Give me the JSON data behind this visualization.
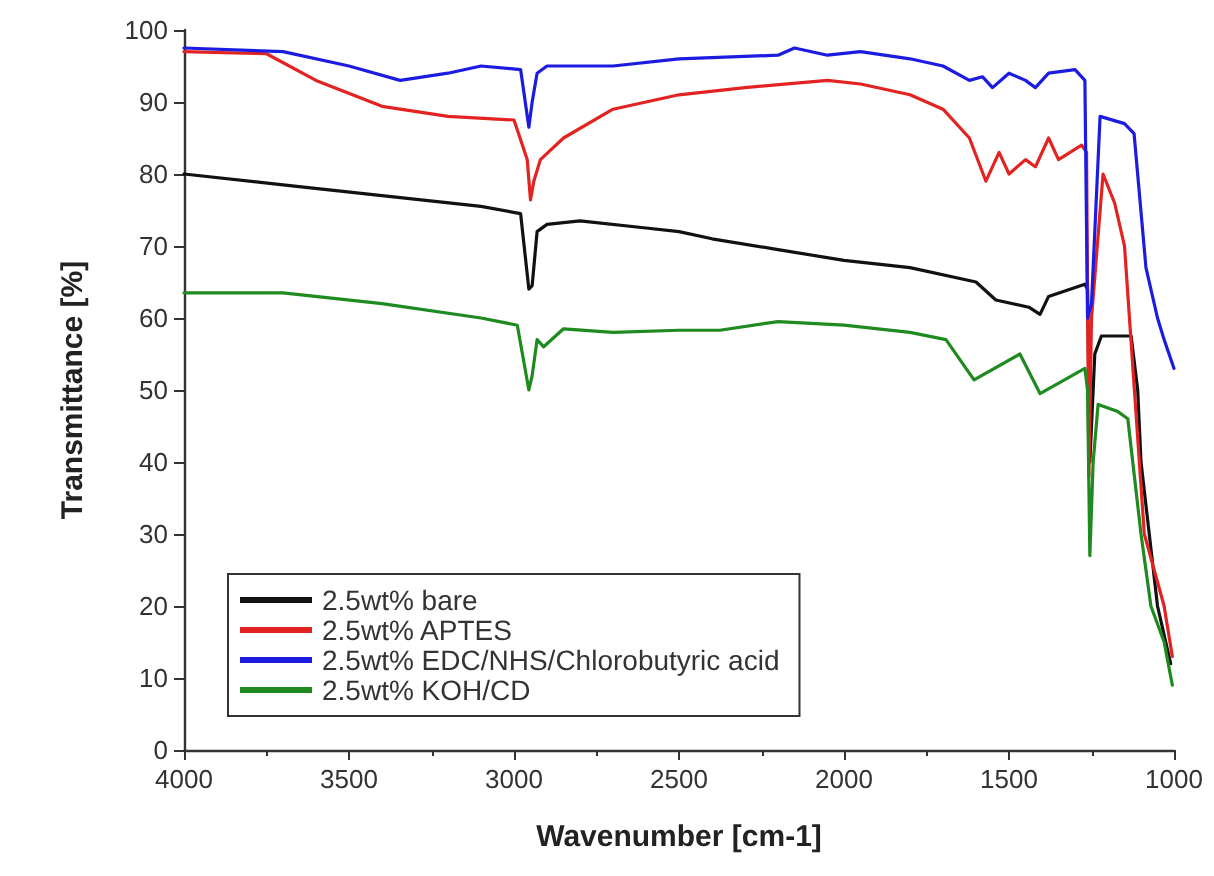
{
  "chart_data": {
    "type": "line",
    "xlabel": "Wavenumber [cm-1]",
    "ylabel": "Transmittance [%]",
    "xlim": [
      4000,
      1000
    ],
    "ylim": [
      0,
      100
    ],
    "xticks": [
      4000,
      3500,
      3000,
      2500,
      2000,
      1500,
      1000
    ],
    "yticks": [
      0,
      10,
      20,
      30,
      40,
      50,
      60,
      70,
      80,
      90,
      100
    ],
    "legend": "bottom left",
    "grid": false,
    "marker": "none",
    "line_style": "solid",
    "series": [
      {
        "name": "2.5wt% bare",
        "color": "#111111",
        "x": [
          4000,
          3700,
          3400,
          3100,
          2980,
          2955,
          2945,
          2930,
          2900,
          2800,
          2600,
          2500,
          2400,
          2200,
          2000,
          1800,
          1600,
          1540,
          1440,
          1406,
          1380,
          1270,
          1262,
          1255,
          1240,
          1220,
          1130,
          1110,
          1100,
          1050,
          1010
        ],
        "values": [
          80,
          78.5,
          77,
          75.5,
          74.5,
          64,
          64.5,
          72,
          73,
          73.5,
          72.5,
          72,
          71,
          69.5,
          68,
          67,
          65,
          62.5,
          61.5,
          60.5,
          63,
          64.7,
          64,
          40,
          55,
          57.5,
          57.5,
          50,
          40,
          20,
          12
        ]
      },
      {
        "name": "2.5wt% APTES",
        "color": "#e32222",
        "x": [
          4000,
          3750,
          3600,
          3400,
          3200,
          3000,
          2960,
          2950,
          2940,
          2920,
          2850,
          2700,
          2500,
          2300,
          2050,
          1950,
          1800,
          1700,
          1620,
          1570,
          1530,
          1500,
          1450,
          1420,
          1380,
          1350,
          1280,
          1265,
          1258,
          1250,
          1215,
          1180,
          1150,
          1120,
          1090,
          1030,
          1005
        ],
        "values": [
          97,
          96.7,
          93,
          89.4,
          88,
          87.5,
          82,
          76.4,
          79,
          82,
          85,
          89,
          91,
          92,
          93,
          92.5,
          91,
          89,
          85,
          79,
          83,
          80,
          82,
          81,
          85,
          82,
          84,
          83,
          38,
          60,
          80,
          76,
          70,
          50,
          30,
          20,
          13
        ]
      },
      {
        "name": "2.5wt% EDC/NHS/Chlorobutyric acid",
        "color": "#1c1ce0",
        "x": [
          4000,
          3700,
          3500,
          3345,
          3200,
          3100,
          2980,
          2955,
          2945,
          2930,
          2900,
          2700,
          2500,
          2200,
          2150,
          2050,
          1950,
          1800,
          1700,
          1620,
          1580,
          1550,
          1500,
          1450,
          1420,
          1380,
          1300,
          1270,
          1262,
          1250,
          1224,
          1150,
          1121,
          1085,
          1050,
          1030,
          1000
        ],
        "values": [
          97.5,
          97,
          95,
          93,
          94,
          95,
          94.5,
          86.5,
          90,
          94,
          95,
          95,
          96,
          96.5,
          97.5,
          96.5,
          97,
          96,
          95,
          93,
          93.5,
          92,
          94,
          93,
          92,
          94,
          94.5,
          93,
          60,
          62,
          88,
          87,
          85.6,
          67,
          60,
          57,
          53
        ]
      },
      {
        "name": "2.5wt% KOH/CD",
        "color": "#1f8a1f",
        "x": [
          4000,
          3700,
          3400,
          3100,
          2990,
          2955,
          2945,
          2930,
          2910,
          2850,
          2700,
          2500,
          2376,
          2200,
          2000,
          1800,
          1691,
          1606,
          1467,
          1406,
          1270,
          1262,
          1255,
          1245,
          1230,
          1170,
          1140,
          1100,
          1070,
          1030,
          1005
        ],
        "values": [
          63.5,
          63.5,
          62,
          60,
          59,
          50,
          52,
          57,
          56,
          58.5,
          58,
          58.3,
          58.3,
          59.5,
          59,
          58,
          57,
          51.4,
          55,
          49.5,
          53,
          50,
          27,
          40,
          48,
          47,
          46,
          30,
          20,
          15,
          9
        ]
      }
    ]
  }
}
